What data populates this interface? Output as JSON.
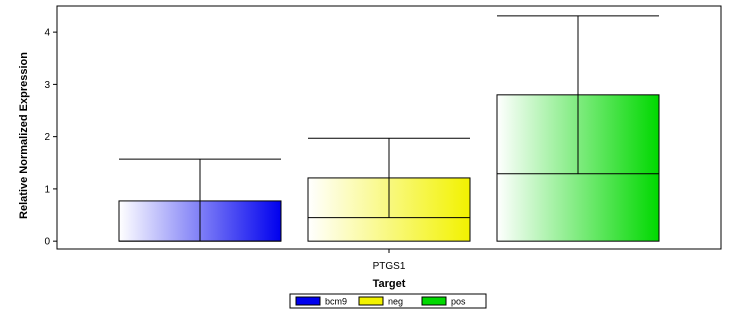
{
  "chart_data": {
    "type": "bar",
    "categories": [
      "PTGS1"
    ],
    "series": [
      {
        "name": "bcm9",
        "value": 0.77,
        "error_low": 0.0,
        "error_high": 1.57,
        "color": "#0000ee"
      },
      {
        "name": "neg",
        "value": 1.21,
        "error_low": 0.45,
        "error_high": 1.97,
        "color": "#f2f200"
      },
      {
        "name": "pos",
        "value": 2.8,
        "error_low": 1.29,
        "error_high": 4.31,
        "color": "#00d800"
      }
    ],
    "xlabel": "Target",
    "ylabel": "Relative Normalized Expression",
    "ylim": [
      -0.15,
      4.5
    ],
    "yticks": [
      0,
      1,
      2,
      3,
      4
    ],
    "grid": false,
    "legend_position": "bottom-center"
  }
}
